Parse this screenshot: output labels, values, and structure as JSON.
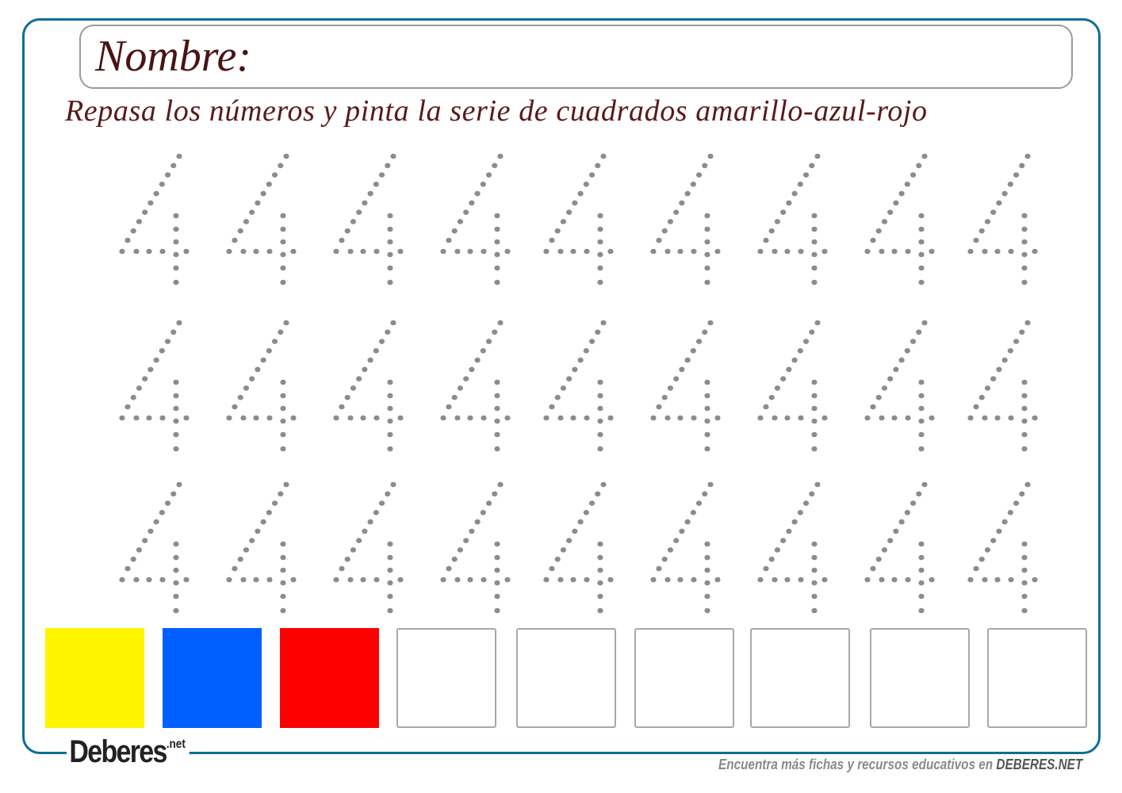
{
  "header": {
    "name_label": "Nombre:",
    "instruction": "Repasa los números y pinta la serie de cuadrados amarillo-azul-rojo"
  },
  "tracing": {
    "digit": "4",
    "rows": 3,
    "per_row": 9,
    "dot_color": "#8c8c8c"
  },
  "squares": [
    {
      "color": "#fff500",
      "filled": true
    },
    {
      "color": "#0060ff",
      "filled": true
    },
    {
      "color": "#ff0000",
      "filled": true
    },
    {
      "filled": false
    },
    {
      "filled": false
    },
    {
      "filled": false
    },
    {
      "filled": false
    },
    {
      "filled": false
    },
    {
      "filled": false
    }
  ],
  "footer": {
    "logo": "Deberes",
    "logo_suffix": ".net",
    "tagline": "Encuentra más fichas y recursos educativos en",
    "site": "DEBERES.NET"
  },
  "colors": {
    "border": "#0e6e96",
    "text": "#5a1a1a"
  }
}
